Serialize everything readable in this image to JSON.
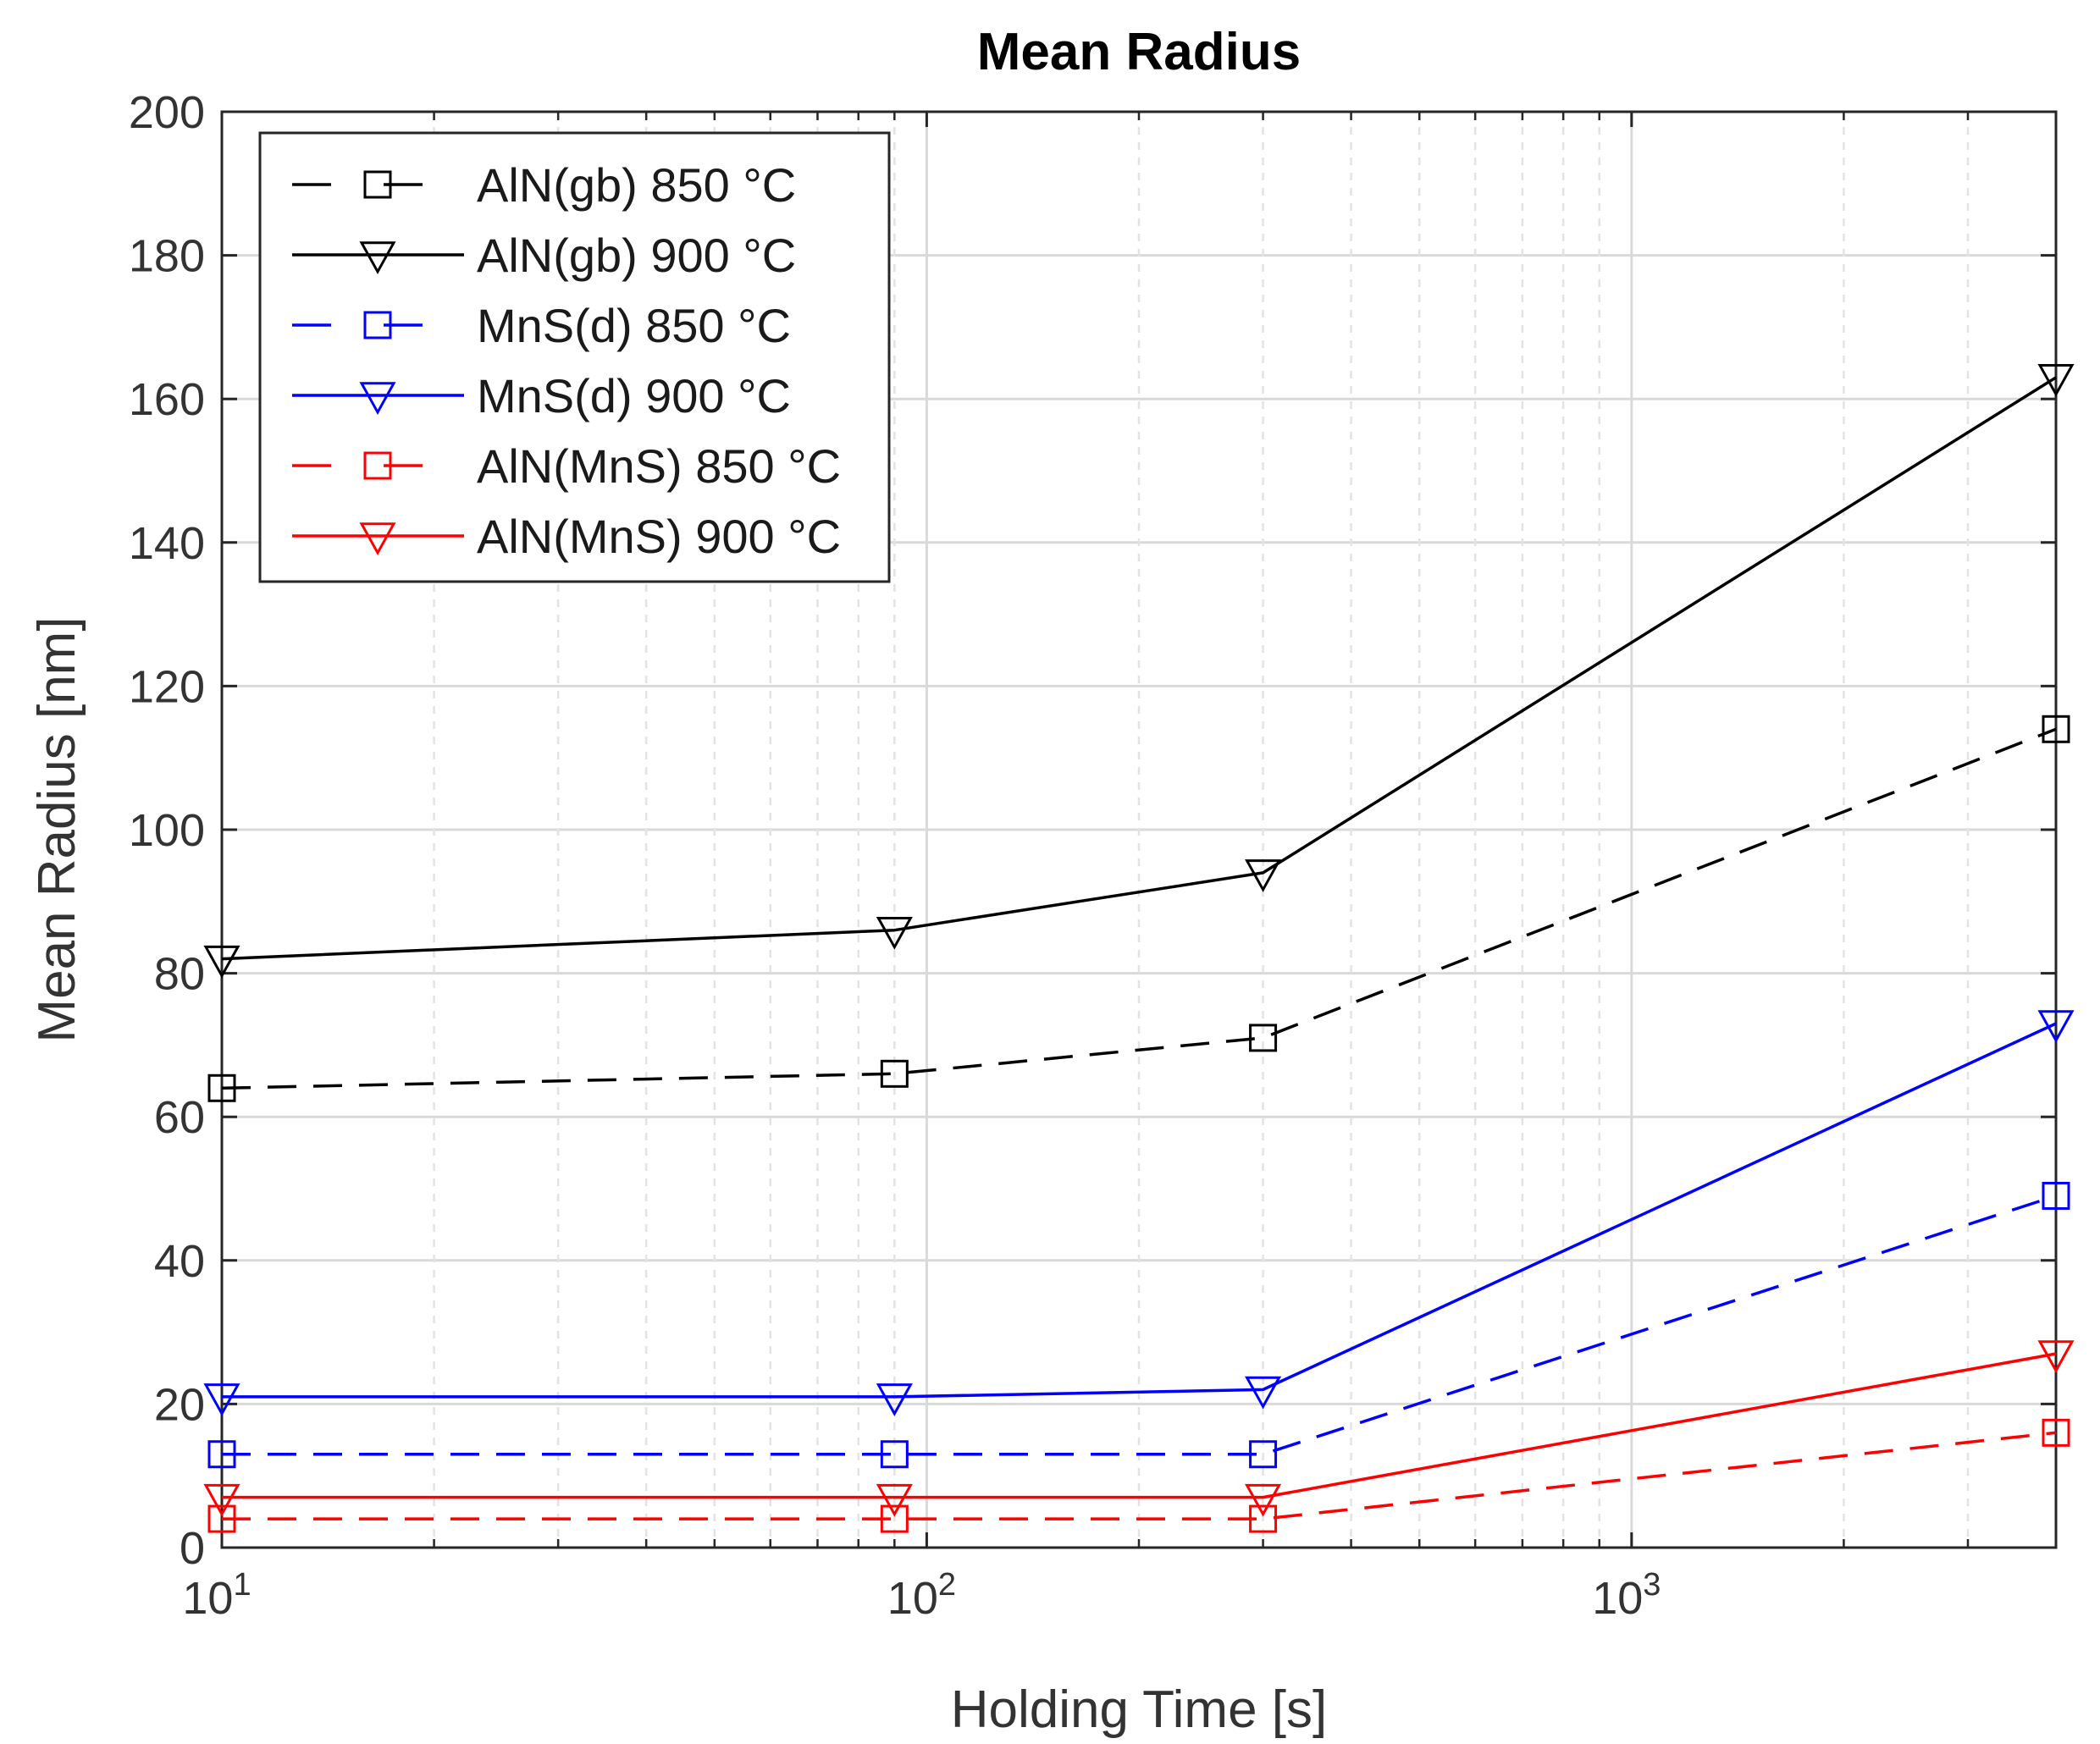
{
  "chart_data": {
    "type": "line",
    "title": "Mean Radius",
    "xlabel": "Holding Time [s]",
    "ylabel": "Mean Radius [nm]",
    "xscale": "log",
    "xlim": [
      10,
      4000
    ],
    "ylim": [
      0,
      200
    ],
    "yticks": [
      "0",
      "20",
      "40",
      "60",
      "80",
      "100",
      "120",
      "140",
      "160",
      "180",
      "200"
    ],
    "xticks": [
      {
        "base": "10",
        "exp": "1"
      },
      {
        "base": "10",
        "exp": "2"
      },
      {
        "base": "10",
        "exp": "3"
      }
    ],
    "grid": true,
    "legend_position": "top-left",
    "x": [
      10,
      90,
      300,
      4000
    ],
    "series": [
      {
        "name": "AlN(gb) 850 °C",
        "color": "#000000",
        "dash": "dashed",
        "marker": "square",
        "values": [
          64,
          66,
          71,
          114
        ]
      },
      {
        "name": "AlN(gb) 900 °C",
        "color": "#000000",
        "dash": "solid",
        "marker": "triangle-down",
        "values": [
          82,
          86,
          94,
          163
        ]
      },
      {
        "name": "MnS(d) 850 °C",
        "color": "#0000ff",
        "dash": "dashed",
        "marker": "square",
        "values": [
          13,
          13,
          13,
          49
        ]
      },
      {
        "name": "MnS(d) 900 °C",
        "color": "#0000ff",
        "dash": "solid",
        "marker": "triangle-down",
        "values": [
          21,
          21,
          22,
          73
        ]
      },
      {
        "name": "AlN(MnS) 850 °C",
        "color": "#ff0000",
        "dash": "dashed",
        "marker": "square",
        "values": [
          4,
          4,
          4,
          16
        ]
      },
      {
        "name": "AlN(MnS) 900 °C",
        "color": "#ff0000",
        "dash": "solid",
        "marker": "triangle-down",
        "values": [
          7,
          7,
          7,
          27
        ]
      }
    ]
  }
}
